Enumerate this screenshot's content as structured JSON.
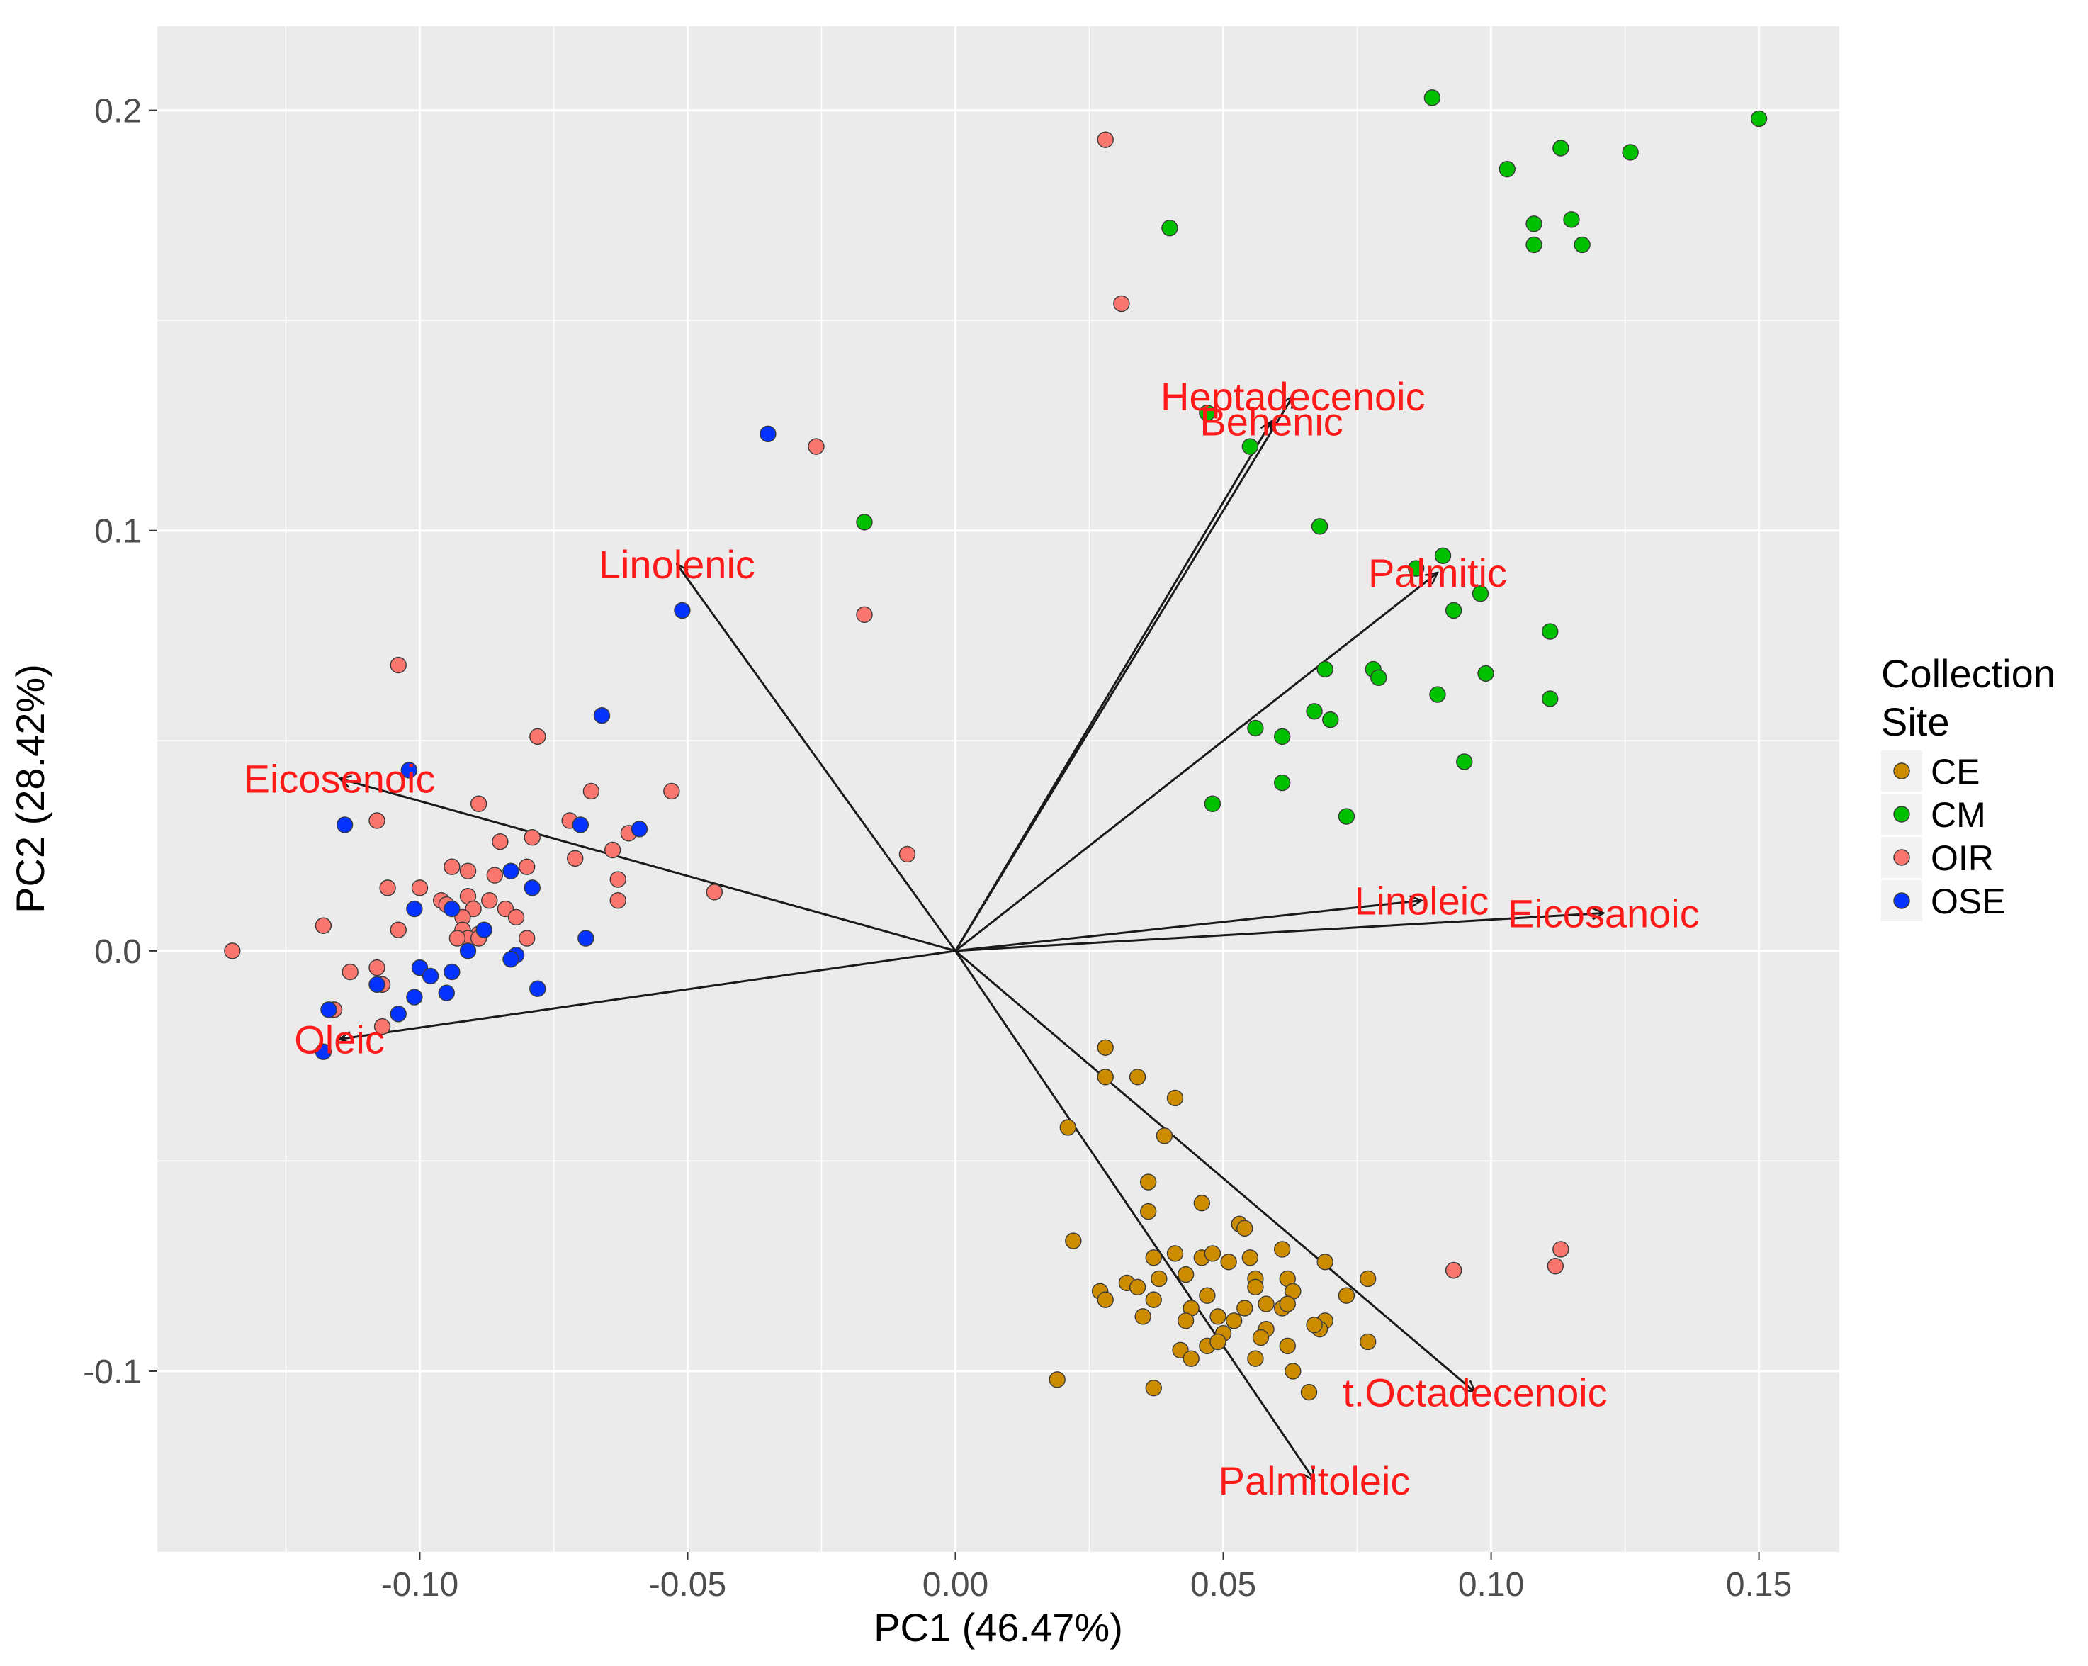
{
  "chart_data": {
    "type": "scatter",
    "title": "",
    "xlabel": "PC1 (46.47%)",
    "ylabel": "PC2 (28.42%)",
    "xlim": [
      -0.149,
      0.165
    ],
    "ylim": [
      -0.143,
      0.22
    ],
    "grid": true,
    "x_ticks": [
      -0.1,
      -0.05,
      0.0,
      0.05,
      0.1,
      0.15
    ],
    "x_tick_labels": [
      "-0.10",
      "-0.05",
      "0.00",
      "0.05",
      "0.10",
      "0.15"
    ],
    "y_ticks": [
      -0.1,
      0.0,
      0.1,
      0.2
    ],
    "y_tick_labels": [
      "-0.1",
      "0.0",
      "0.1",
      "0.2"
    ],
    "legend": {
      "title_lines": [
        "Collection",
        "Site"
      ],
      "position": "right"
    },
    "series": [
      {
        "name": "CE",
        "color": "#cd8c00",
        "points": [
          [
            0.028,
            -0.023
          ],
          [
            0.028,
            -0.03
          ],
          [
            0.034,
            -0.03
          ],
          [
            0.021,
            -0.042
          ],
          [
            0.041,
            -0.035
          ],
          [
            0.039,
            -0.044
          ],
          [
            0.036,
            -0.055
          ],
          [
            0.036,
            -0.062
          ],
          [
            0.046,
            -0.06
          ],
          [
            0.053,
            -0.065
          ],
          [
            0.054,
            -0.066
          ],
          [
            0.061,
            -0.071
          ],
          [
            0.022,
            -0.069
          ],
          [
            0.037,
            -0.073
          ],
          [
            0.041,
            -0.072
          ],
          [
            0.046,
            -0.073
          ],
          [
            0.048,
            -0.072
          ],
          [
            0.051,
            -0.074
          ],
          [
            0.055,
            -0.073
          ],
          [
            0.069,
            -0.074
          ],
          [
            0.077,
            -0.078
          ],
          [
            0.093,
            -0.076
          ],
          [
            0.027,
            -0.081
          ],
          [
            0.028,
            -0.083
          ],
          [
            0.032,
            -0.079
          ],
          [
            0.034,
            -0.08
          ],
          [
            0.038,
            -0.078
          ],
          [
            0.043,
            -0.077
          ],
          [
            0.047,
            -0.082
          ],
          [
            0.056,
            -0.078
          ],
          [
            0.062,
            -0.078
          ],
          [
            0.063,
            -0.081
          ],
          [
            0.073,
            -0.082
          ],
          [
            0.056,
            -0.08
          ],
          [
            0.058,
            -0.084
          ],
          [
            0.037,
            -0.083
          ],
          [
            0.044,
            -0.085
          ],
          [
            0.049,
            -0.087
          ],
          [
            0.054,
            -0.085
          ],
          [
            0.061,
            -0.085
          ],
          [
            0.062,
            -0.084
          ],
          [
            0.069,
            -0.088
          ],
          [
            0.068,
            -0.09
          ],
          [
            0.035,
            -0.087
          ],
          [
            0.043,
            -0.088
          ],
          [
            0.052,
            -0.088
          ],
          [
            0.058,
            -0.09
          ],
          [
            0.05,
            -0.091
          ],
          [
            0.057,
            -0.092
          ],
          [
            0.047,
            -0.094
          ],
          [
            0.049,
            -0.093
          ],
          [
            0.062,
            -0.094
          ],
          [
            0.067,
            -0.089
          ],
          [
            0.077,
            -0.093
          ],
          [
            0.042,
            -0.095
          ],
          [
            0.044,
            -0.097
          ],
          [
            0.056,
            -0.097
          ],
          [
            0.063,
            -0.1
          ],
          [
            0.066,
            -0.105
          ],
          [
            0.019,
            -0.102
          ],
          [
            0.037,
            -0.104
          ]
        ]
      },
      {
        "name": "CM",
        "color": "#00c000",
        "points": [
          [
            0.089,
            0.203
          ],
          [
            0.15,
            0.198
          ],
          [
            0.113,
            0.191
          ],
          [
            0.126,
            0.19
          ],
          [
            0.103,
            0.186
          ],
          [
            0.04,
            0.172
          ],
          [
            0.108,
            0.173
          ],
          [
            0.115,
            0.174
          ],
          [
            0.108,
            0.168
          ],
          [
            0.117,
            0.168
          ],
          [
            0.047,
            0.128
          ],
          [
            0.055,
            0.12
          ],
          [
            -0.017,
            0.102
          ],
          [
            0.068,
            0.101
          ],
          [
            0.091,
            0.094
          ],
          [
            0.086,
            0.091
          ],
          [
            0.098,
            0.085
          ],
          [
            0.093,
            0.081
          ],
          [
            0.111,
            0.076
          ],
          [
            0.069,
            0.067
          ],
          [
            0.078,
            0.067
          ],
          [
            0.079,
            0.065
          ],
          [
            0.099,
            0.066
          ],
          [
            0.09,
            0.061
          ],
          [
            0.111,
            0.06
          ],
          [
            0.067,
            0.057
          ],
          [
            0.07,
            0.055
          ],
          [
            0.056,
            0.053
          ],
          [
            0.061,
            0.051
          ],
          [
            0.095,
            0.045
          ],
          [
            0.061,
            0.04
          ],
          [
            0.048,
            0.035
          ],
          [
            0.073,
            0.032
          ]
        ]
      },
      {
        "name": "OIR",
        "color": "#f8766d",
        "points": [
          [
            0.028,
            0.193
          ],
          [
            0.031,
            0.154
          ],
          [
            -0.026,
            0.12
          ],
          [
            -0.017,
            0.08
          ],
          [
            -0.104,
            0.068
          ],
          [
            -0.078,
            0.051
          ],
          [
            -0.068,
            0.038
          ],
          [
            -0.053,
            0.038
          ],
          [
            -0.089,
            0.035
          ],
          [
            -0.108,
            0.031
          ],
          [
            -0.072,
            0.031
          ],
          [
            -0.061,
            0.028
          ],
          [
            -0.079,
            0.027
          ],
          [
            -0.085,
            0.026
          ],
          [
            -0.064,
            0.024
          ],
          [
            -0.009,
            0.023
          ],
          [
            -0.071,
            0.022
          ],
          [
            -0.08,
            0.02
          ],
          [
            -0.086,
            0.018
          ],
          [
            -0.094,
            0.02
          ],
          [
            -0.091,
            0.019
          ],
          [
            -0.063,
            0.017
          ],
          [
            -0.106,
            0.015
          ],
          [
            -0.1,
            0.015
          ],
          [
            -0.045,
            0.014
          ],
          [
            -0.091,
            0.013
          ],
          [
            -0.096,
            0.012
          ],
          [
            -0.095,
            0.011
          ],
          [
            -0.087,
            0.012
          ],
          [
            -0.063,
            0.012
          ],
          [
            -0.084,
            0.01
          ],
          [
            -0.09,
            0.01
          ],
          [
            -0.092,
            0.008
          ],
          [
            -0.082,
            0.008
          ],
          [
            -0.104,
            0.005
          ],
          [
            -0.092,
            0.005
          ],
          [
            -0.089,
            0.004
          ],
          [
            -0.118,
            0.006
          ],
          [
            -0.08,
            0.003
          ],
          [
            -0.091,
            0.003
          ],
          [
            -0.089,
            0.003
          ],
          [
            -0.135,
            0.0
          ],
          [
            -0.093,
            0.003
          ],
          [
            -0.108,
            -0.004
          ],
          [
            -0.113,
            -0.005
          ],
          [
            -0.107,
            -0.008
          ],
          [
            -0.116,
            -0.014
          ],
          [
            -0.107,
            -0.018
          ],
          [
            0.113,
            -0.071
          ],
          [
            0.112,
            -0.075
          ],
          [
            0.093,
            -0.076
          ]
        ]
      },
      {
        "name": "OSE",
        "color": "#0433ff",
        "points": [
          [
            -0.035,
            0.123
          ],
          [
            -0.051,
            0.081
          ],
          [
            -0.066,
            0.056
          ],
          [
            -0.102,
            0.043
          ],
          [
            -0.114,
            0.03
          ],
          [
            -0.07,
            0.03
          ],
          [
            -0.059,
            0.029
          ],
          [
            -0.083,
            0.019
          ],
          [
            -0.079,
            0.015
          ],
          [
            -0.101,
            0.01
          ],
          [
            -0.094,
            0.01
          ],
          [
            -0.088,
            0.005
          ],
          [
            -0.069,
            0.003
          ],
          [
            -0.091,
            0.0
          ],
          [
            -0.082,
            -0.001
          ],
          [
            -0.083,
            -0.002
          ],
          [
            -0.1,
            -0.004
          ],
          [
            -0.094,
            -0.005
          ],
          [
            -0.098,
            -0.006
          ],
          [
            -0.108,
            -0.008
          ],
          [
            -0.078,
            -0.009
          ],
          [
            -0.095,
            -0.01
          ],
          [
            -0.101,
            -0.011
          ],
          [
            -0.117,
            -0.014
          ],
          [
            -0.104,
            -0.015
          ],
          [
            -0.118,
            -0.024
          ]
        ]
      }
    ],
    "loadings": [
      {
        "name": "Heptadecenoic",
        "x": 0.063,
        "y": 0.132
      },
      {
        "name": "Behenic",
        "x": 0.059,
        "y": 0.126
      },
      {
        "name": "Linolenic",
        "x": -0.052,
        "y": 0.092
      },
      {
        "name": "Palmitic",
        "x": 0.09,
        "y": 0.09
      },
      {
        "name": "Eicosenoic",
        "x": -0.115,
        "y": 0.041
      },
      {
        "name": "Linoleic",
        "x": 0.087,
        "y": 0.012
      },
      {
        "name": "Eicosanoic",
        "x": 0.121,
        "y": 0.009
      },
      {
        "name": "Oleic",
        "x": -0.115,
        "y": -0.021
      },
      {
        "name": "t.Octadecenoic",
        "x": 0.097,
        "y": -0.105
      },
      {
        "name": "Palmitoleic",
        "x": 0.067,
        "y": -0.126
      }
    ],
    "loading_label_color": "#ff1a1a"
  }
}
